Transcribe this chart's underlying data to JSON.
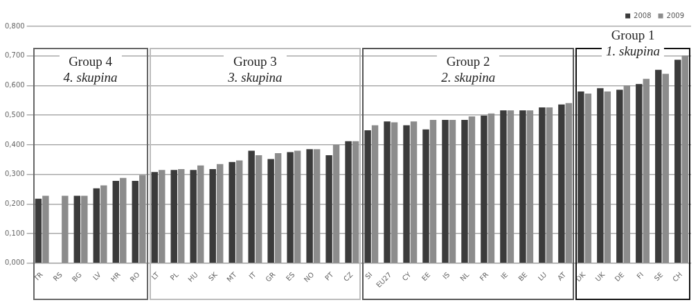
{
  "chart_data": {
    "type": "bar",
    "categories": [
      "TR",
      "RS",
      "BG",
      "LV",
      "HR",
      "RO",
      "LT",
      "PL",
      "HU",
      "SK",
      "MT",
      "IT",
      "GR",
      "ES",
      "NO",
      "PT",
      "CZ",
      "SI",
      "EU27",
      "CY",
      "EE",
      "IS",
      "NL",
      "FR",
      "IE",
      "BE",
      "LU",
      "AT",
      "DK",
      "UK",
      "DE",
      "FI",
      "SE",
      "CH"
    ],
    "series": [
      {
        "name": "2008",
        "color": "#3b3b3b",
        "values": [
          0.218,
          null,
          0.228,
          0.253,
          0.278,
          0.278,
          0.308,
          0.315,
          0.315,
          0.318,
          0.342,
          0.38,
          0.352,
          0.375,
          0.385,
          0.365,
          0.412,
          0.449,
          0.479,
          0.466,
          0.452,
          0.484,
          0.484,
          0.499,
          0.516,
          0.516,
          0.526,
          0.536,
          0.58,
          0.591,
          0.586,
          0.605,
          0.653,
          0.687
        ]
      },
      {
        "name": "2009",
        "color": "#8c8c8c",
        "values": [
          0.228,
          0.228,
          0.228,
          0.263,
          0.288,
          0.298,
          0.315,
          0.318,
          0.33,
          0.335,
          0.347,
          0.365,
          0.372,
          0.38,
          0.385,
          0.4,
          0.412,
          0.466,
          0.476,
          0.479,
          0.484,
          0.484,
          0.496,
          0.506,
          0.516,
          0.516,
          0.526,
          0.541,
          0.573,
          0.58,
          0.6,
          0.623,
          0.64,
          0.702
        ]
      }
    ],
    "ylim": [
      0,
      0.8
    ],
    "yticks": [
      {
        "value": 0,
        "label": "0,000"
      },
      {
        "value": 0.1,
        "label": "0,100"
      },
      {
        "value": 0.2,
        "label": "0,200"
      },
      {
        "value": 0.3,
        "label": "0,300"
      },
      {
        "value": 0.4,
        "label": "0,400"
      },
      {
        "value": 0.5,
        "label": "0,500"
      },
      {
        "value": 0.6,
        "label": "0,600"
      },
      {
        "value": 0.7,
        "label": "0,700"
      },
      {
        "value": 0.8,
        "label": "0,800"
      }
    ],
    "grid": "y",
    "legend": "top right",
    "annotations": [
      "Group 4",
      "4. skupina",
      "Group 3",
      "3. skupina",
      "Group 2",
      "2. skupina",
      "Group 1",
      "1. skupina"
    ]
  }
}
